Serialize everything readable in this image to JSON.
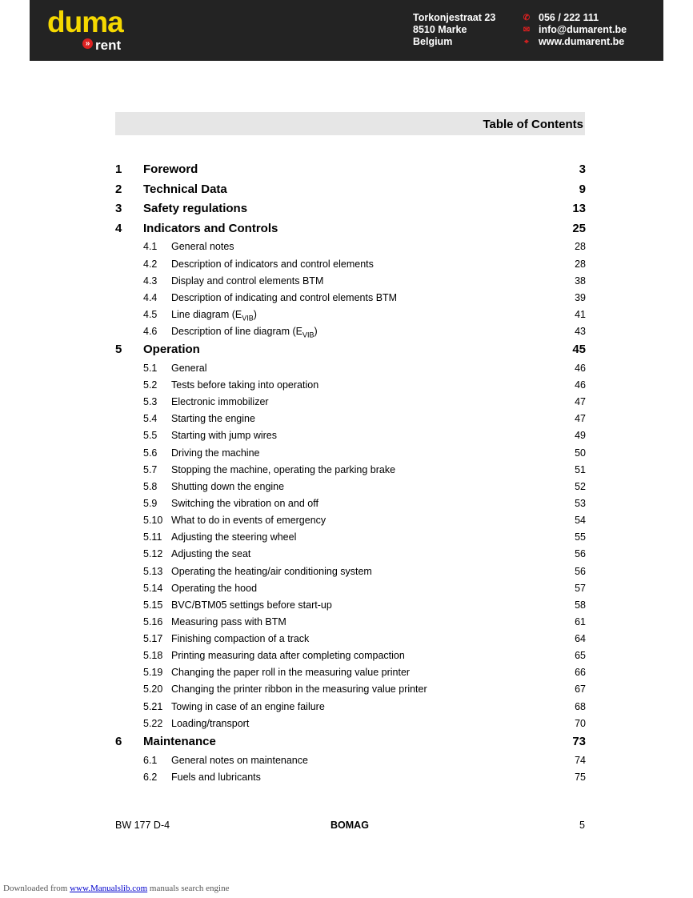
{
  "header": {
    "logo": {
      "line1": "duma",
      "line2": "rent"
    },
    "address": [
      "Torkonjestraat 23",
      "8510 Marke",
      "Belgium"
    ],
    "contact": [
      {
        "icon": "phone-icon",
        "text": "056 / 222 111"
      },
      {
        "icon": "email-icon",
        "text": "info@dumarent.be"
      },
      {
        "icon": "mouse-icon",
        "text": "www.dumarent.be"
      }
    ],
    "colors": {
      "background": "#232323",
      "logo": "#f5d800",
      "icons": "#e02020"
    }
  },
  "toc_title": "Table of Contents",
  "entries": [
    {
      "level": 1,
      "num": "1",
      "title": "Foreword",
      "page": "3"
    },
    {
      "level": 1,
      "num": "2",
      "title": "Technical Data",
      "page": "9"
    },
    {
      "level": 1,
      "num": "3",
      "title": "Safety regulations",
      "page": "13"
    },
    {
      "level": 1,
      "num": "4",
      "title": "Indicators and Controls",
      "page": "25"
    },
    {
      "level": 2,
      "num": "4.1",
      "title": "General notes",
      "page": "28"
    },
    {
      "level": 2,
      "num": "4.2",
      "title": "Description of indicators and control elements",
      "page": "28"
    },
    {
      "level": 2,
      "num": "4.3",
      "title": "Display and control elements BTM",
      "page": "38"
    },
    {
      "level": 2,
      "num": "4.4",
      "title": "Description of indicating and control elements BTM",
      "page": "39"
    },
    {
      "level": 2,
      "num": "4.5",
      "title": "Line diagram (E",
      "sub": "VIB",
      "suffix": ")",
      "page": "41"
    },
    {
      "level": 2,
      "num": "4.6",
      "title": "Description of line diagram  (E",
      "sub": "VIB",
      "suffix": ")",
      "page": "43"
    },
    {
      "level": 1,
      "num": "5",
      "title": "Operation",
      "page": "45"
    },
    {
      "level": 2,
      "num": "5.1",
      "title": "General",
      "page": "46"
    },
    {
      "level": 2,
      "num": "5.2",
      "title": "Tests before taking into operation",
      "page": "46"
    },
    {
      "level": 2,
      "num": "5.3",
      "title": "Electronic immobilizer",
      "page": "47"
    },
    {
      "level": 2,
      "num": "5.4",
      "title": "Starting the engine",
      "page": "47"
    },
    {
      "level": 2,
      "num": "5.5",
      "title": "Starting with jump wires",
      "page": "49"
    },
    {
      "level": 2,
      "num": "5.6",
      "title": "Driving the machine",
      "page": "50"
    },
    {
      "level": 2,
      "num": "5.7",
      "title": "Stopping the machine, operating the parking brake",
      "page": "51"
    },
    {
      "level": 2,
      "num": "5.8",
      "title": "Shutting down the engine",
      "page": "52"
    },
    {
      "level": 2,
      "num": "5.9",
      "title": "Switching the vibration on and off",
      "page": "53"
    },
    {
      "level": 2,
      "num": "5.10",
      "title": "What to do in events of emergency",
      "page": "54"
    },
    {
      "level": 2,
      "num": "5.11",
      "title": "Adjusting the steering wheel",
      "page": "55"
    },
    {
      "level": 2,
      "num": "5.12",
      "title": "Adjusting the seat",
      "page": "56"
    },
    {
      "level": 2,
      "num": "5.13",
      "title": "Operating the heating/air conditioning system",
      "page": "56"
    },
    {
      "level": 2,
      "num": "5.14",
      "title": "Operating the hood",
      "page": "57"
    },
    {
      "level": 2,
      "num": "5.15",
      "title": "BVC/BTM05 settings before start-up",
      "page": "58"
    },
    {
      "level": 2,
      "num": "5.16",
      "title": "Measuring pass with BTM",
      "page": "61"
    },
    {
      "level": 2,
      "num": "5.17",
      "title": "Finishing compaction of a track",
      "page": "64"
    },
    {
      "level": 2,
      "num": "5.18",
      "title": "Printing measuring data after completing compaction",
      "page": "65"
    },
    {
      "level": 2,
      "num": "5.19",
      "title": "Changing the paper roll in the measuring value printer",
      "page": "66"
    },
    {
      "level": 2,
      "num": "5.20",
      "title": "Changing the printer ribbon in the measuring value printer",
      "page": "67"
    },
    {
      "level": 2,
      "num": "5.21",
      "title": "Towing in case of an engine failure",
      "page": "68"
    },
    {
      "level": 2,
      "num": "5.22",
      "title": "Loading/transport",
      "page": "70"
    },
    {
      "level": 1,
      "num": "6",
      "title": "Maintenance",
      "page": "73"
    },
    {
      "level": 2,
      "num": "6.1",
      "title": "General notes on maintenance",
      "page": "74"
    },
    {
      "level": 2,
      "num": "6.2",
      "title": "Fuels and lubricants",
      "page": "75"
    }
  ],
  "footer": {
    "model": "BW 177 D-4",
    "brand": "BOMAG",
    "page": "5"
  },
  "download": {
    "prefix": "Downloaded from ",
    "link": "www.Manualslib.com",
    "suffix": " manuals search engine"
  }
}
